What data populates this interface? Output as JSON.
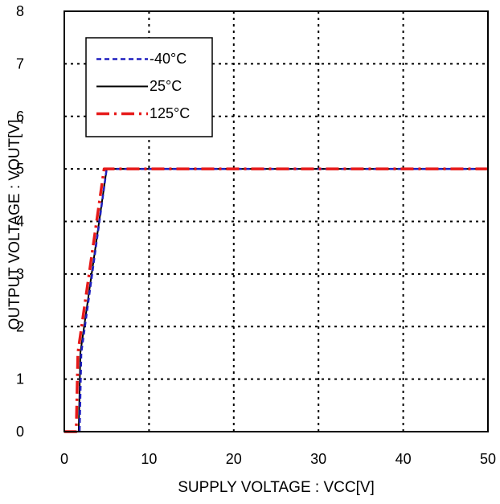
{
  "chart_data": {
    "type": "line",
    "title": "",
    "xlabel": "SUPPLY VOLTAGE : VCC[V]",
    "ylabel": "OUTPUT VOLTAGE : VOUT[V]",
    "xlim": [
      0,
      50
    ],
    "ylim": [
      0,
      8
    ],
    "x_ticks": [
      0,
      10,
      20,
      30,
      40,
      50
    ],
    "y_ticks": [
      0,
      1,
      2,
      3,
      4,
      5,
      6,
      7,
      8
    ],
    "grid": true,
    "grid_style": "dotted",
    "legend_position": "top-left",
    "series": [
      {
        "name": "-40°C",
        "color": "#1f1fbf",
        "style": "dashed",
        "x": [
          0,
          1.8,
          2.0,
          5.0,
          50
        ],
        "y": [
          0,
          0,
          1.5,
          5.0,
          5.0
        ]
      },
      {
        "name": "25°C",
        "color": "#000000",
        "style": "solid",
        "x": [
          0,
          1.7,
          1.9,
          5.0,
          50
        ],
        "y": [
          0,
          0,
          1.5,
          5.0,
          5.0
        ]
      },
      {
        "name": "125°C",
        "color": "#e61919",
        "style": "dashdot",
        "x": [
          0,
          1.4,
          1.6,
          4.7,
          50
        ],
        "y": [
          0,
          0,
          1.5,
          5.0,
          5.0
        ]
      }
    ]
  }
}
